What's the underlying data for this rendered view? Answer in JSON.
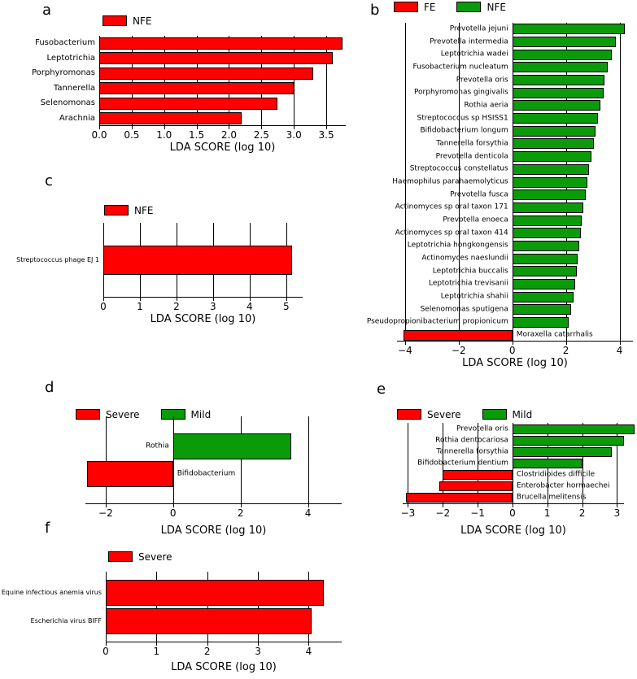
{
  "figure": {
    "description": "LEfSe LDA score bar charts, six panels"
  },
  "chart_data": [
    {
      "panel": "a",
      "panel_letter": "a",
      "type": "bar",
      "orientation": "horizontal",
      "grid": true,
      "legend_position": "top",
      "xlabel": "LDA SCORE (log 10)",
      "xlim": [
        0,
        3.8
      ],
      "xticks": [
        {
          "v": 0,
          "label": "0.0"
        },
        {
          "v": 0.5,
          "label": "0.5"
        },
        {
          "v": 1,
          "label": "1.0"
        },
        {
          "v": 1.5,
          "label": "1.5"
        },
        {
          "v": 2,
          "label": "2.0"
        },
        {
          "v": 2.5,
          "label": "2.5"
        },
        {
          "v": 3,
          "label": "3.0"
        },
        {
          "v": 3.5,
          "label": "3.5"
        }
      ],
      "legend": [
        {
          "name": "NFE",
          "color": "#ff0000"
        }
      ],
      "bars": [
        {
          "label": "Fusobacterium",
          "value": 3.75,
          "series": "NFE"
        },
        {
          "label": "Leptotrichia",
          "value": 3.6,
          "series": "NFE"
        },
        {
          "label": "Porphyromonas",
          "value": 3.3,
          "series": "NFE"
        },
        {
          "label": "Tannerella",
          "value": 3.0,
          "series": "NFE"
        },
        {
          "label": "Selenomonas",
          "value": 2.75,
          "series": "NFE"
        },
        {
          "label": "Arachnia",
          "value": 2.2,
          "series": "NFE"
        }
      ]
    },
    {
      "panel": "b",
      "panel_letter": "b",
      "type": "bar",
      "orientation": "horizontal",
      "grid": true,
      "legend_position": "top",
      "xlabel": "LDA SCORE (log 10)",
      "xlim": [
        -4.3,
        4.5
      ],
      "xticks": [
        {
          "v": -4,
          "label": "−4"
        },
        {
          "v": -2,
          "label": "−2"
        },
        {
          "v": 0,
          "label": "0"
        },
        {
          "v": 2,
          "label": "2"
        },
        {
          "v": 4,
          "label": "4"
        }
      ],
      "legend": [
        {
          "name": "FE",
          "color": "#ff0000"
        },
        {
          "name": "NFE",
          "color": "#0a9a0a"
        }
      ],
      "bars": [
        {
          "label": "Prevotella jejuni",
          "value": 4.2,
          "series": "NFE"
        },
        {
          "label": "Prevotella intermedia",
          "value": 3.85,
          "series": "NFE"
        },
        {
          "label": "Leptotrichia wadei",
          "value": 3.7,
          "series": "NFE"
        },
        {
          "label": "Fusobacterium nucleatum",
          "value": 3.55,
          "series": "NFE"
        },
        {
          "label": "Prevotella oris",
          "value": 3.45,
          "series": "NFE"
        },
        {
          "label": "Porphyromonas gingivalis",
          "value": 3.4,
          "series": "NFE"
        },
        {
          "label": "Rothia aeria",
          "value": 3.3,
          "series": "NFE"
        },
        {
          "label": "Streptococcus sp HSISS1",
          "value": 3.2,
          "series": "NFE"
        },
        {
          "label": "Bifidobacterium longum",
          "value": 3.1,
          "series": "NFE"
        },
        {
          "label": "Tannerella forsythia",
          "value": 3.05,
          "series": "NFE"
        },
        {
          "label": "Prevotella denticola",
          "value": 2.95,
          "series": "NFE"
        },
        {
          "label": "Streptococcus constellatus",
          "value": 2.85,
          "series": "NFE"
        },
        {
          "label": "Haemophilus parahaemolyticus",
          "value": 2.8,
          "series": "NFE"
        },
        {
          "label": "Prevotella fusca",
          "value": 2.75,
          "series": "NFE"
        },
        {
          "label": "Actinomyces sp  oral taxon 171",
          "value": 2.65,
          "series": "NFE"
        },
        {
          "label": "Prevotella enoeca",
          "value": 2.6,
          "series": "NFE"
        },
        {
          "label": "Actinomyces sp  oral taxon 414",
          "value": 2.55,
          "series": "NFE"
        },
        {
          "label": "Leptotrichia hongkongensis",
          "value": 2.5,
          "series": "NFE"
        },
        {
          "label": "Actinomyces naeslundii",
          "value": 2.45,
          "series": "NFE"
        },
        {
          "label": "Leptotrichia buccalis",
          "value": 2.4,
          "series": "NFE"
        },
        {
          "label": "Leptotrichia trevisanii",
          "value": 2.35,
          "series": "NFE"
        },
        {
          "label": "Leptotrichia shahii",
          "value": 2.3,
          "series": "NFE"
        },
        {
          "label": "Selenomonas sputigena",
          "value": 2.2,
          "series": "NFE"
        },
        {
          "label": "Pseudopropionibacterium propionicum",
          "value": 2.1,
          "series": "NFE"
        },
        {
          "label": "Moraxella catarrhalis",
          "value": -4.05,
          "series": "FE"
        }
      ]
    },
    {
      "panel": "c",
      "panel_letter": "c",
      "type": "bar",
      "orientation": "horizontal",
      "grid": true,
      "legend_position": "top",
      "xlabel": "LDA SCORE (log 10)",
      "xlim": [
        0,
        5.45
      ],
      "xticks": [
        {
          "v": 0,
          "label": "0"
        },
        {
          "v": 1,
          "label": "1"
        },
        {
          "v": 2,
          "label": "2"
        },
        {
          "v": 3,
          "label": "3"
        },
        {
          "v": 4,
          "label": "4"
        },
        {
          "v": 5,
          "label": "5"
        }
      ],
      "legend": [
        {
          "name": "NFE",
          "color": "#ff0000"
        }
      ],
      "bars": [
        {
          "label": "Streptococcus phage EJ 1",
          "value": 5.15,
          "series": "NFE"
        }
      ]
    },
    {
      "panel": "d",
      "panel_letter": "d",
      "type": "bar",
      "orientation": "horizontal",
      "grid": true,
      "legend_position": "top",
      "xlabel": "LDA SCORE (log 10)",
      "xlim": [
        -2.6,
        5.0
      ],
      "xticks": [
        {
          "v": -2,
          "label": "−2"
        },
        {
          "v": 0,
          "label": "0"
        },
        {
          "v": 2,
          "label": "2"
        },
        {
          "v": 4,
          "label": "4"
        }
      ],
      "legend": [
        {
          "name": "Severe",
          "color": "#ff0000"
        },
        {
          "name": "Mild",
          "color": "#0a9a0a"
        }
      ],
      "bars": [
        {
          "label": "Rothia",
          "value": 3.5,
          "series": "Mild"
        },
        {
          "label": "Bifidobacterium",
          "value": -2.55,
          "series": "Severe"
        }
      ]
    },
    {
      "panel": "e",
      "panel_letter": "e",
      "type": "bar",
      "orientation": "horizontal",
      "grid": true,
      "legend_position": "top",
      "xlabel": "LDA SCORE (log 10)",
      "xlim": [
        -3.15,
        3.2
      ],
      "xticks": [
        {
          "v": -3,
          "label": "−3"
        },
        {
          "v": -2,
          "label": "−2"
        },
        {
          "v": -1,
          "label": "−1"
        },
        {
          "v": 0,
          "label": "0"
        },
        {
          "v": 1,
          "label": "1"
        },
        {
          "v": 2,
          "label": "2"
        },
        {
          "v": 3,
          "label": "3"
        }
      ],
      "legend": [
        {
          "name": "Severe",
          "color": "#ff0000"
        },
        {
          "name": "Mild",
          "color": "#0a9a0a"
        }
      ],
      "bars": [
        {
          "label": "Prevotella oris",
          "value": 3.5,
          "series": "Mild"
        },
        {
          "label": "Rothia dentocariosa",
          "value": 3.2,
          "series": "Mild"
        },
        {
          "label": "Tannerella forsythia",
          "value": 2.85,
          "series": "Mild"
        },
        {
          "label": "Bifidobacterium dentium",
          "value": 2.0,
          "series": "Mild"
        },
        {
          "label": "Clostridioides difficile",
          "value": -2.0,
          "series": "Severe"
        },
        {
          "label": "Enterobacter hormaechei",
          "value": -2.1,
          "series": "Severe"
        },
        {
          "label": "Brucella melitensis",
          "value": -3.05,
          "series": "Severe"
        }
      ]
    },
    {
      "panel": "f",
      "panel_letter": "f",
      "type": "bar",
      "orientation": "horizontal",
      "grid": true,
      "legend_position": "top",
      "xlabel": "LDA SCORE (log 10)",
      "xlim": [
        0,
        4.65
      ],
      "xticks": [
        {
          "v": 0,
          "label": "0"
        },
        {
          "v": 1,
          "label": "1"
        },
        {
          "v": 2,
          "label": "2"
        },
        {
          "v": 3,
          "label": "3"
        },
        {
          "v": 4,
          "label": "4"
        }
      ],
      "legend": [
        {
          "name": "Severe",
          "color": "#ff0000"
        }
      ],
      "bars": [
        {
          "label": "Equine infectious anemia virus",
          "value": 4.3,
          "series": "Severe"
        },
        {
          "label": "Escherichia virus BIFF",
          "value": 4.05,
          "series": "Severe"
        }
      ]
    }
  ]
}
